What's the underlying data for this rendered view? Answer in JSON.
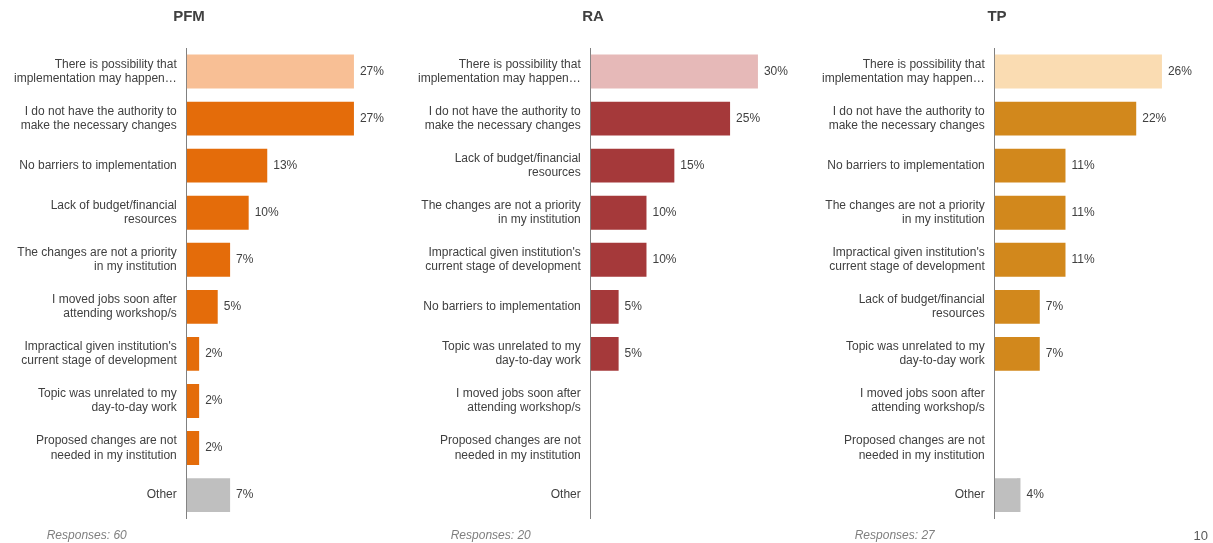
{
  "chart_data": [
    {
      "type": "bar",
      "orientation": "horizontal",
      "title": "PFM",
      "data_labels": false,
      "categories": [
        "There is possibility that implementation may happen…",
        "I do not have the authority to make the necessary changes",
        "No barriers to implementation",
        "Lack of budget/financial resources",
        "The changes are not a priority in my institution",
        "I moved jobs soon after attending workshop/s",
        "Impractical given institution's current stage of development",
        "Topic was unrelated to my day-to-day work",
        "Proposed changes are not needed in my institution",
        "Other"
      ],
      "values": [
        27,
        27,
        13,
        10,
        7,
        5,
        2,
        2,
        2,
        7
      ],
      "value_labels": [
        "27%",
        "27%",
        "13%",
        "10%",
        "7%",
        "5%",
        "2%",
        "2%",
        "2%",
        "7%"
      ],
      "colors": [
        "#f8bf95",
        "#e46c0a",
        "#e46c0a",
        "#e46c0a",
        "#e46c0a",
        "#e46c0a",
        "#e46c0a",
        "#e46c0a",
        "#e46c0a",
        "#bfbfbf"
      ],
      "annotations": [
        "Responses: 60"
      ],
      "legend": false
    },
    {
      "type": "bar",
      "orientation": "horizontal",
      "title": "RA",
      "data_labels": false,
      "categories": [
        "There is possibility that implementation may happen…",
        "I do not have the authority to make the necessary changes",
        "Lack of budget/financial resources",
        "The changes are not a priority in my institution",
        "Impractical given institution's current stage of development",
        "No barriers to implementation",
        "Topic was unrelated to my day-to-day work",
        "I moved jobs soon after attending workshop/s",
        "Proposed changes are not needed in my institution",
        "Other"
      ],
      "values": [
        30,
        25,
        15,
        10,
        10,
        5,
        5,
        null,
        null,
        null
      ],
      "value_labels": [
        "30%",
        "25%",
        "15%",
        "10%",
        "10%",
        "5%",
        "5%",
        null,
        null,
        null
      ],
      "colors": [
        "#e6b9b8",
        "#a5393a",
        "#a5393a",
        "#a5393a",
        "#a5393a",
        "#a5393a",
        "#a5393a",
        "#a5393a",
        "#a5393a",
        "#bfbfbf"
      ],
      "annotations": [
        "Responses: 20"
      ],
      "legend": false
    },
    {
      "type": "bar",
      "orientation": "horizontal",
      "title": "TP",
      "data_labels": false,
      "categories": [
        "There is possibility that implementation may happen…",
        "I do not have the authority to make the necessary changes",
        "No barriers to implementation",
        "The changes are not a priority in my institution",
        "Impractical given institution's current stage of development",
        "Lack of budget/financial resources",
        "Topic was unrelated to my day-to-day work",
        "I moved jobs soon after attending workshop/s",
        "Proposed changes are not needed in my institution",
        "Other"
      ],
      "values": [
        26,
        22,
        11,
        11,
        11,
        7,
        7,
        null,
        null,
        4
      ],
      "value_labels": [
        "26%",
        "22%",
        "11%",
        "11%",
        "11%",
        "7%",
        "7%",
        null,
        null,
        "4%"
      ],
      "colors": [
        "#fadcb2",
        "#d2881c",
        "#d2881c",
        "#d2881c",
        "#d2881c",
        "#d2881c",
        "#d2881c",
        "#d2881c",
        "#d2881c",
        "#bfbfbf"
      ],
      "annotations": [
        "Responses: 27",
        "10"
      ],
      "legend": false
    }
  ]
}
